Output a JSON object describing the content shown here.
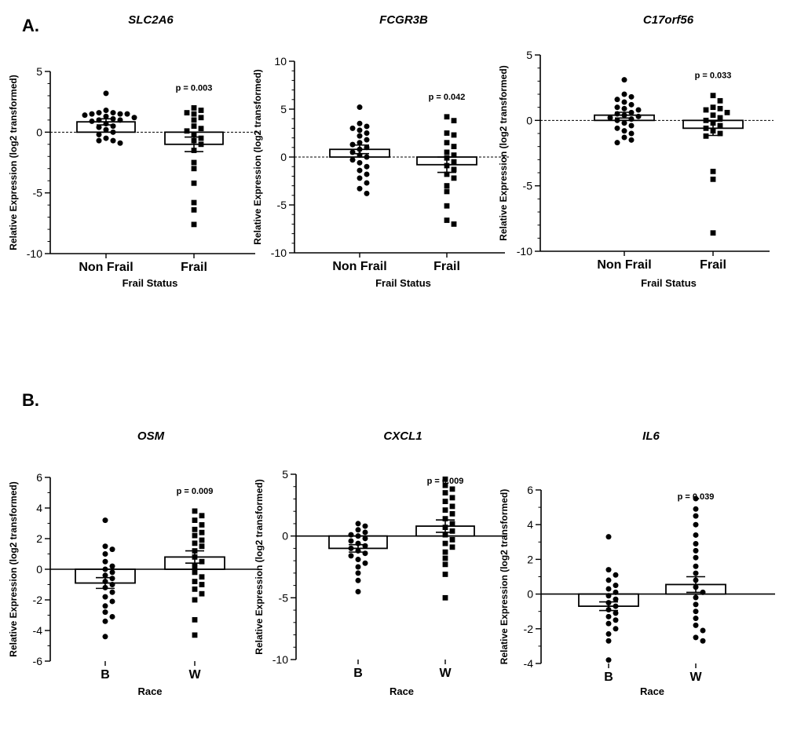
{
  "figure": {
    "panel_labels": [
      "A.",
      "B."
    ]
  },
  "chart_data": [
    {
      "type": "scatter",
      "panel": "A.",
      "title": "SLC2A6",
      "xlabel": "Frail Status",
      "ylabel": "Relative Expression (log2 transformed)",
      "ylim": [
        -10,
        5
      ],
      "yticks": [
        5,
        0,
        -5,
        -10
      ],
      "categories": [
        "Non Frail",
        "Frail"
      ],
      "p_value": "p = 0.003",
      "baseline": "dashed",
      "series": [
        {
          "name": "Non Frail",
          "marker": "circle",
          "mean": 0.85,
          "sem": 0.25,
          "values": [
            1.5,
            1.6,
            1.4,
            1.5,
            1.3,
            1.6,
            1.8,
            1.5,
            1.2,
            1.0,
            1.1,
            0.9,
            1.0,
            0.7,
            0.5,
            0.4,
            0.2,
            0.0,
            -0.2,
            -0.5,
            -0.7,
            -0.9,
            -0.7,
            3.2
          ]
        },
        {
          "name": "Frail",
          "marker": "square",
          "mean": -1.0,
          "sem": 0.6,
          "values": [
            2.0,
            1.8,
            1.6,
            1.5,
            1.2,
            1.0,
            0.5,
            0.3,
            0.1,
            -0.2,
            -0.5,
            -0.7,
            -1.0,
            -1.5,
            -2.5,
            -3.0,
            -4.2,
            -5.8,
            -6.4,
            -7.6
          ]
        }
      ]
    },
    {
      "type": "scatter",
      "panel": "A.",
      "title": "FCGR3B",
      "xlabel": "Frail Status",
      "ylabel": "Relative Expression (log2 transformed)",
      "ylim": [
        -10,
        10
      ],
      "yticks": [
        10,
        5,
        0,
        -5,
        -10
      ],
      "categories": [
        "Non Frail",
        "Frail"
      ],
      "p_value": "p = 0.042",
      "baseline": "dashed",
      "series": [
        {
          "name": "Non Frail",
          "marker": "circle",
          "mean": 0.8,
          "sem": 0.45,
          "values": [
            5.2,
            3.5,
            3.2,
            3.0,
            2.8,
            2.5,
            2.2,
            1.8,
            1.5,
            1.3,
            1.0,
            0.8,
            0.5,
            0.2,
            0.0,
            -0.3,
            -0.6,
            -1.0,
            -1.4,
            -1.8,
            -2.2,
            -2.7,
            -3.3,
            -3.8
          ]
        },
        {
          "name": "Frail",
          "marker": "square",
          "mean": -0.8,
          "sem": 0.8,
          "values": [
            4.2,
            3.8,
            2.5,
            2.3,
            1.5,
            1.1,
            0.5,
            0.2,
            -0.1,
            -0.5,
            -0.9,
            -1.3,
            -1.8,
            -2.2,
            -3.0,
            -3.6,
            -5.1,
            -6.6,
            -7.0
          ]
        }
      ]
    },
    {
      "type": "scatter",
      "panel": "A.",
      "title": "C17orf56",
      "xlabel": "Frail Status",
      "ylabel": "Relative Expression (log2 transformed)",
      "ylim": [
        -10,
        5
      ],
      "yticks": [
        5,
        0,
        -5,
        -10
      ],
      "categories": [
        "Non Frail",
        "Frail"
      ],
      "p_value": "p = 0.033",
      "baseline": "dashed",
      "series": [
        {
          "name": "Non Frail",
          "marker": "circle",
          "mean": 0.4,
          "sem": 0.22,
          "values": [
            3.1,
            2.0,
            1.8,
            1.6,
            1.4,
            1.2,
            1.0,
            0.9,
            0.8,
            0.6,
            0.5,
            0.4,
            0.3,
            0.2,
            0.1,
            0.0,
            -0.2,
            -0.4,
            -0.6,
            -0.8,
            -1.0,
            -1.3,
            -1.5,
            -1.7
          ]
        },
        {
          "name": "Frail",
          "marker": "square",
          "mean": -0.6,
          "sem": 0.55,
          "values": [
            1.9,
            1.5,
            1.0,
            0.9,
            0.8,
            0.6,
            0.4,
            0.2,
            0.0,
            -0.2,
            -0.4,
            -0.6,
            -0.8,
            -1.0,
            -1.2,
            -3.9,
            -4.5,
            -8.6
          ]
        }
      ]
    },
    {
      "type": "scatter",
      "panel": "B.",
      "title": "OSM",
      "xlabel": "Race",
      "ylabel": "Relative Expression (log2 transformed)",
      "ylim": [
        -6,
        6
      ],
      "yticks": [
        6,
        4,
        2,
        0,
        -2,
        -4,
        -6
      ],
      "categories": [
        "B",
        "W"
      ],
      "p_value": "p = 0.009",
      "baseline": "solid",
      "series": [
        {
          "name": "B",
          "marker": "circle",
          "mean": -0.9,
          "sem": 0.35,
          "values": [
            3.2,
            1.5,
            1.3,
            1.0,
            0.5,
            0.2,
            0.0,
            -0.2,
            -0.4,
            -0.6,
            -0.8,
            -1.0,
            -1.2,
            -1.5,
            -1.8,
            -2.1,
            -2.4,
            -2.8,
            -3.1,
            -3.4,
            -4.4
          ]
        },
        {
          "name": "W",
          "marker": "square",
          "mean": 0.8,
          "sem": 0.4,
          "values": [
            3.8,
            3.5,
            3.2,
            2.9,
            2.6,
            2.4,
            2.2,
            1.9,
            1.7,
            1.5,
            1.2,
            0.8,
            0.5,
            0.2,
            -0.2,
            -0.5,
            -0.8,
            -1.0,
            -1.3,
            -1.6,
            -2.0,
            -3.3,
            -4.3
          ]
        }
      ]
    },
    {
      "type": "scatter",
      "panel": "B.",
      "title": "CXCL1",
      "xlabel": "Race",
      "ylabel": "Relative Expression (log2 transformed)",
      "ylim": [
        -10,
        5
      ],
      "yticks": [
        5,
        0,
        -5,
        -10
      ],
      "categories": [
        "B",
        "W"
      ],
      "p_value": "p = 0.009",
      "baseline": "solid",
      "series": [
        {
          "name": "B",
          "marker": "circle",
          "mean": -1.0,
          "sem": 0.3,
          "values": [
            1.0,
            0.8,
            0.5,
            0.3,
            0.1,
            0.0,
            -0.2,
            -0.4,
            -0.6,
            -0.8,
            -1.0,
            -1.2,
            -1.4,
            -1.6,
            -1.9,
            -2.2,
            -2.5,
            -3.0,
            -3.6,
            -4.5
          ]
        },
        {
          "name": "W",
          "marker": "square",
          "mean": 0.8,
          "sem": 0.5,
          "values": [
            4.6,
            4.1,
            3.8,
            3.5,
            3.1,
            2.8,
            2.4,
            2.1,
            1.8,
            1.4,
            1.0,
            0.7,
            0.4,
            0.1,
            -0.3,
            -0.6,
            -0.9,
            -1.3,
            -1.8,
            -2.3,
            -3.1,
            -5.0
          ]
        }
      ]
    },
    {
      "type": "scatter",
      "panel": "B.",
      "title": "IL6",
      "xlabel": "Race",
      "ylabel": "Relative Expression (log2 transformed)",
      "ylim": [
        -4,
        6
      ],
      "yticks": [
        6,
        4,
        2,
        0,
        -2,
        -4
      ],
      "categories": [
        "B",
        "W"
      ],
      "p_value": "p = 0.039",
      "baseline": "solid",
      "series": [
        {
          "name": "B",
          "marker": "circle",
          "mean": -0.7,
          "sem": 0.25,
          "values": [
            3.3,
            1.4,
            1.1,
            0.8,
            0.5,
            0.3,
            0.1,
            -0.1,
            -0.3,
            -0.5,
            -0.7,
            -0.9,
            -1.1,
            -1.3,
            -1.5,
            -1.7,
            -2.0,
            -2.3,
            -2.7,
            -3.8
          ]
        },
        {
          "name": "W",
          "marker": "circle",
          "mean": 0.55,
          "sem": 0.45,
          "values": [
            5.5,
            4.9,
            4.5,
            4.0,
            3.4,
            2.9,
            2.5,
            2.1,
            1.6,
            1.2,
            0.8,
            0.4,
            0.1,
            -0.2,
            -0.6,
            -1.0,
            -1.4,
            -1.8,
            -2.1,
            -2.5,
            -2.7
          ]
        }
      ]
    }
  ]
}
